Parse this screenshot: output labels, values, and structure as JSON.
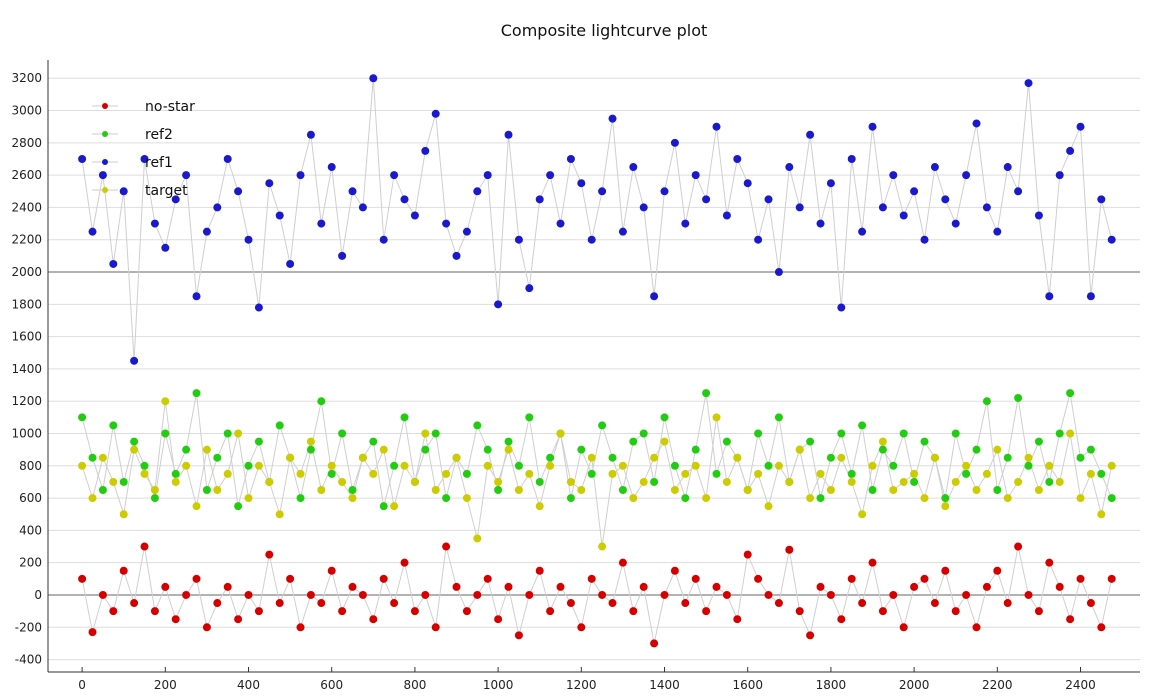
{
  "chart_data": {
    "type": "scatter",
    "title": "Composite lightcurve plot",
    "xlabel": "",
    "ylabel": "",
    "xlim": [
      -82,
      2543
    ],
    "ylim": [
      -477,
      3313
    ],
    "grid": true,
    "legend_position": "top-left",
    "x_ticks": [
      0,
      200,
      400,
      600,
      800,
      1000,
      1200,
      1400,
      1600,
      1800,
      2000,
      2200,
      2400
    ],
    "y_ticks": [
      -400,
      -200,
      0,
      200,
      400,
      600,
      800,
      1000,
      1200,
      1400,
      1600,
      1800,
      2000,
      2200,
      2400,
      2600,
      2800,
      3000,
      3200
    ],
    "emphasized_gridlines": [
      0,
      2000
    ],
    "x_start": 0,
    "x_step": 25,
    "series": [
      {
        "name": "no-star",
        "color": "#d40000",
        "values": [
          100,
          -230,
          0,
          -100,
          150,
          -50,
          300,
          -100,
          50,
          -150,
          0,
          100,
          -200,
          -50,
          50,
          -150,
          0,
          -100,
          250,
          -50,
          100,
          -200,
          0,
          -50,
          150,
          -100,
          50,
          0,
          -150,
          100,
          -50,
          200,
          -100,
          0,
          -200,
          300,
          50,
          -100,
          0,
          100,
          -150,
          50,
          -250,
          0,
          150,
          -100,
          50,
          -50,
          -200,
          100,
          0,
          -50,
          200,
          -100,
          50,
          -300,
          0,
          150,
          -50,
          100,
          -100,
          50,
          0,
          -150,
          250,
          100,
          0,
          -50,
          280,
          -100,
          -250,
          50,
          0,
          -150,
          100,
          -50,
          200,
          -100,
          0,
          -200,
          50,
          100,
          -50,
          150,
          -100,
          0,
          -200,
          50,
          150,
          -50,
          300,
          0,
          -100,
          200,
          50,
          -150,
          100,
          -50,
          -200,
          100
        ]
      },
      {
        "name": "ref2",
        "color": "#22cc11",
        "values": [
          1100,
          850,
          650,
          1050,
          700,
          950,
          800,
          600,
          1000,
          750,
          900,
          1250,
          650,
          850,
          1000,
          550,
          800,
          950,
          700,
          1050,
          850,
          600,
          900,
          1200,
          750,
          1000,
          650,
          850,
          950,
          550,
          800,
          1100,
          700,
          900,
          1000,
          600,
          850,
          750,
          1050,
          900,
          650,
          950,
          800,
          1100,
          700,
          850,
          1000,
          600,
          900,
          750,
          1050,
          850,
          650,
          950,
          1000,
          700,
          1100,
          800,
          600,
          900,
          1250,
          750,
          950,
          850,
          650,
          1000,
          800,
          1100,
          700,
          900,
          950,
          600,
          850,
          1000,
          750,
          1050,
          650,
          900,
          800,
          1000,
          700,
          950,
          850,
          600,
          1000,
          750,
          900,
          1200,
          650,
          850,
          1220,
          800,
          950,
          700,
          1000,
          1250,
          850,
          900,
          750,
          600
        ]
      },
      {
        "name": "ref1",
        "color": "#1a1acc",
        "values": [
          2700,
          2250,
          2600,
          2050,
          2500,
          1450,
          2700,
          2300,
          2150,
          2450,
          2600,
          1850,
          2250,
          2400,
          2700,
          2500,
          2200,
          1780,
          2550,
          2350,
          2050,
          2600,
          2850,
          2300,
          2650,
          2100,
          2500,
          2400,
          3200,
          2200,
          2600,
          2450,
          2350,
          2750,
          2980,
          2300,
          2100,
          2250,
          2500,
          2600,
          1800,
          2850,
          2200,
          1900,
          2450,
          2600,
          2300,
          2700,
          2550,
          2200,
          2500,
          2950,
          2250,
          2650,
          2400,
          1850,
          2500,
          2800,
          2300,
          2600,
          2450,
          2900,
          2350,
          2700,
          2550,
          2200,
          2450,
          2000,
          2650,
          2400,
          2850,
          2300,
          2550,
          1780,
          2700,
          2250,
          2900,
          2400,
          2600,
          2350,
          2500,
          2200,
          2650,
          2450,
          2300,
          2600,
          2920,
          2400,
          2250,
          2650,
          2500,
          3170,
          2350,
          1850,
          2600,
          2750,
          2900,
          1850,
          2450,
          2200
        ]
      },
      {
        "name": "target",
        "color": "#cccc00",
        "values": [
          800,
          600,
          850,
          700,
          500,
          900,
          750,
          650,
          1200,
          700,
          800,
          550,
          900,
          650,
          750,
          1000,
          600,
          800,
          700,
          500,
          850,
          750,
          950,
          650,
          800,
          700,
          600,
          850,
          750,
          900,
          550,
          800,
          700,
          1000,
          650,
          750,
          850,
          600,
          350,
          800,
          700,
          900,
          650,
          750,
          550,
          800,
          1000,
          700,
          650,
          850,
          300,
          750,
          800,
          600,
          700,
          850,
          950,
          650,
          750,
          800,
          600,
          1100,
          700,
          850,
          650,
          750,
          550,
          800,
          700,
          900,
          600,
          750,
          650,
          850,
          700,
          500,
          800,
          950,
          650,
          700,
          750,
          600,
          850,
          550,
          700,
          800,
          650,
          750,
          900,
          600,
          700,
          850,
          650,
          800,
          700,
          1000,
          600,
          750,
          500,
          800
        ]
      }
    ]
  }
}
